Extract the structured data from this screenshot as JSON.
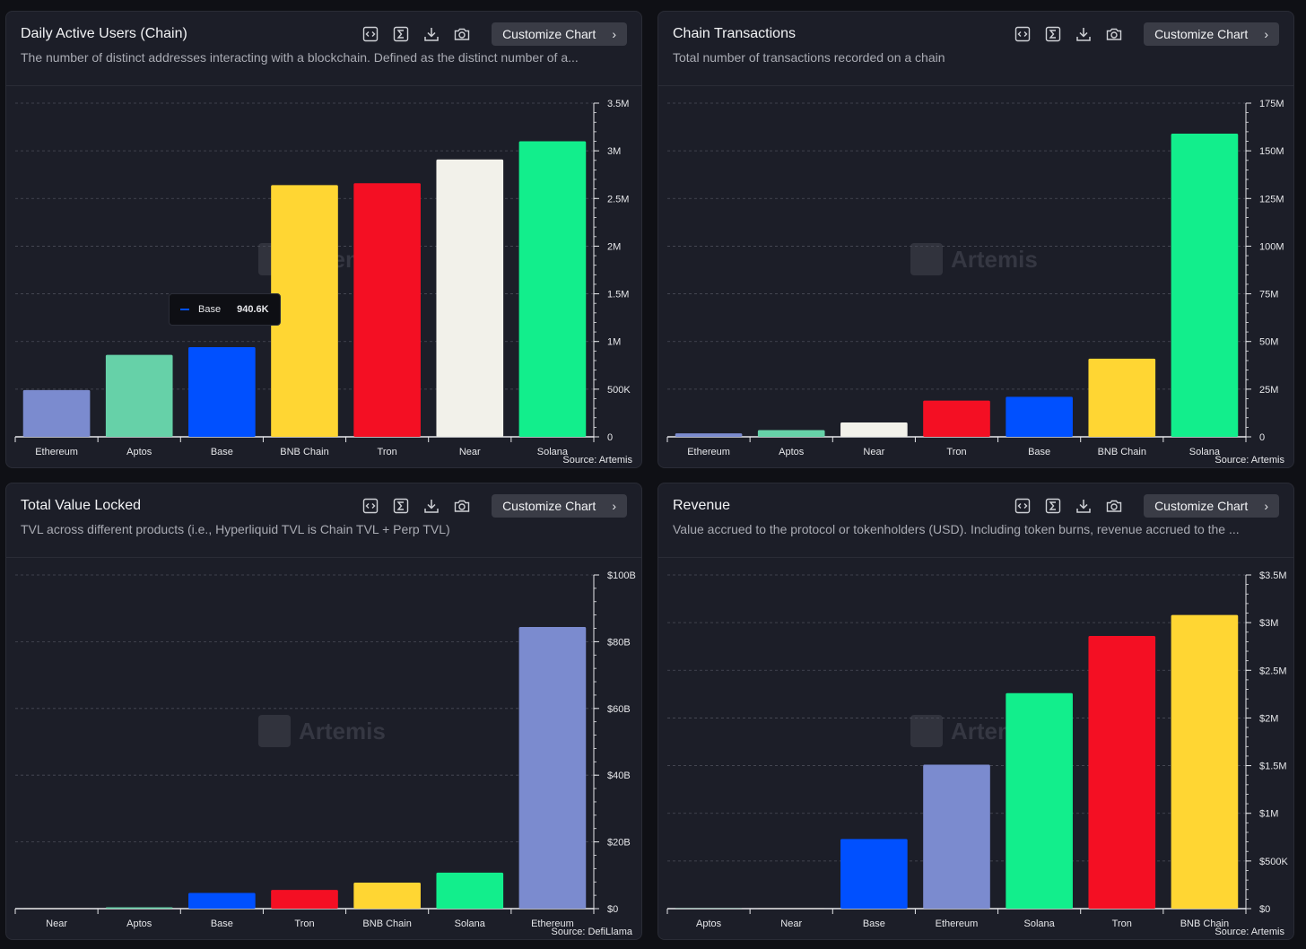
{
  "toolbar": {
    "customize_label": "Customize Chart",
    "icons": [
      "embed-icon",
      "sigma-icon",
      "download-icon",
      "camera-icon"
    ]
  },
  "watermark": "Artemis",
  "panels": [
    {
      "title": "Daily Active Users (Chain)",
      "description": "The number of distinct addresses interacting with a blockchain. Defined as the distinct number of a...",
      "source": "Source: Artemis",
      "tooltip": {
        "series": "Base",
        "value": "940.6K"
      }
    },
    {
      "title": "Chain Transactions",
      "description": "Total number of transactions recorded on a chain",
      "source": "Source: Artemis"
    },
    {
      "title": "Total Value Locked",
      "description": "TVL across different products (i.e., Hyperliquid TVL is Chain TVL + Perp TVL)",
      "source": "Source: DefiLlama"
    },
    {
      "title": "Revenue",
      "description": "Value accrued to the protocol or tokenholders (USD). Including token burns, revenue accrued to the ...",
      "source": "Source: Artemis"
    }
  ],
  "chart_data": [
    {
      "type": "bar",
      "title": "Daily Active Users (Chain)",
      "categories": [
        "Ethereum",
        "Aptos",
        "Base",
        "BNB Chain",
        "Tron",
        "Near",
        "Solana"
      ],
      "values": [
        490000,
        860000,
        940600,
        2640000,
        2660000,
        2910000,
        3100000
      ],
      "colors": [
        "#7b8bcf",
        "#66d1a8",
        "#0050ff",
        "#ffd633",
        "#f40f23",
        "#f2f1ea",
        "#12ee8c"
      ],
      "ylim": [
        0,
        3500000
      ],
      "ytick_values": [
        0,
        500000,
        1000000,
        1500000,
        2000000,
        2500000,
        3000000,
        3500000
      ],
      "ytick_labels": [
        "0",
        "500K",
        "1M",
        "1.5M",
        "2M",
        "2.5M",
        "3M",
        "3.5M"
      ],
      "grid": true,
      "axis_side": "right"
    },
    {
      "type": "bar",
      "title": "Chain Transactions",
      "categories": [
        "Ethereum",
        "Aptos",
        "Near",
        "Tron",
        "Base",
        "BNB Chain",
        "Solana"
      ],
      "values": [
        1800000,
        3500000,
        7500000,
        19000000,
        21000000,
        41000000,
        159000000
      ],
      "colors": [
        "#7b8bcf",
        "#66d1a8",
        "#f2f1ea",
        "#f40f23",
        "#0050ff",
        "#ffd633",
        "#12ee8c"
      ],
      "ylim": [
        0,
        175000000
      ],
      "ytick_values": [
        0,
        25000000,
        50000000,
        75000000,
        100000000,
        125000000,
        150000000,
        175000000
      ],
      "ytick_labels": [
        "0",
        "25M",
        "50M",
        "75M",
        "100M",
        "125M",
        "150M",
        "175M"
      ],
      "grid": true,
      "axis_side": "right"
    },
    {
      "type": "bar",
      "title": "Total Value Locked",
      "categories": [
        "Near",
        "Aptos",
        "Base",
        "Tron",
        "BNB Chain",
        "Solana",
        "Ethereum"
      ],
      "values": [
        150000000,
        400000000,
        4700000000,
        5600000000,
        7800000000,
        10800000000,
        84400000000
      ],
      "colors": [
        "#f2f1ea",
        "#66d1a8",
        "#0050ff",
        "#f40f23",
        "#ffd633",
        "#12ee8c",
        "#7b8bcf"
      ],
      "ylim": [
        0,
        100000000000
      ],
      "ytick_values": [
        0,
        20000000000,
        40000000000,
        60000000000,
        80000000000,
        100000000000
      ],
      "ytick_labels": [
        "$0",
        "$20B",
        "$40B",
        "$60B",
        "$80B",
        "$100B"
      ],
      "grid": true,
      "axis_side": "right"
    },
    {
      "type": "bar",
      "title": "Revenue",
      "categories": [
        "Aptos",
        "Near",
        "Base",
        "Ethereum",
        "Solana",
        "Tron",
        "BNB Chain"
      ],
      "values": [
        2000,
        5000,
        730000,
        1510000,
        2260000,
        2860000,
        3080000
      ],
      "colors": [
        "#66d1a8",
        "#f2f1ea",
        "#0050ff",
        "#7b8bcf",
        "#12ee8c",
        "#f40f23",
        "#ffd633"
      ],
      "ylim": [
        0,
        3500000
      ],
      "ytick_values": [
        0,
        500000,
        1000000,
        1500000,
        2000000,
        2500000,
        3000000,
        3500000
      ],
      "ytick_labels": [
        "$0",
        "$500K",
        "$1M",
        "$1.5M",
        "$2M",
        "$2.5M",
        "$3M",
        "$3.5M"
      ],
      "grid": true,
      "axis_side": "right"
    }
  ]
}
